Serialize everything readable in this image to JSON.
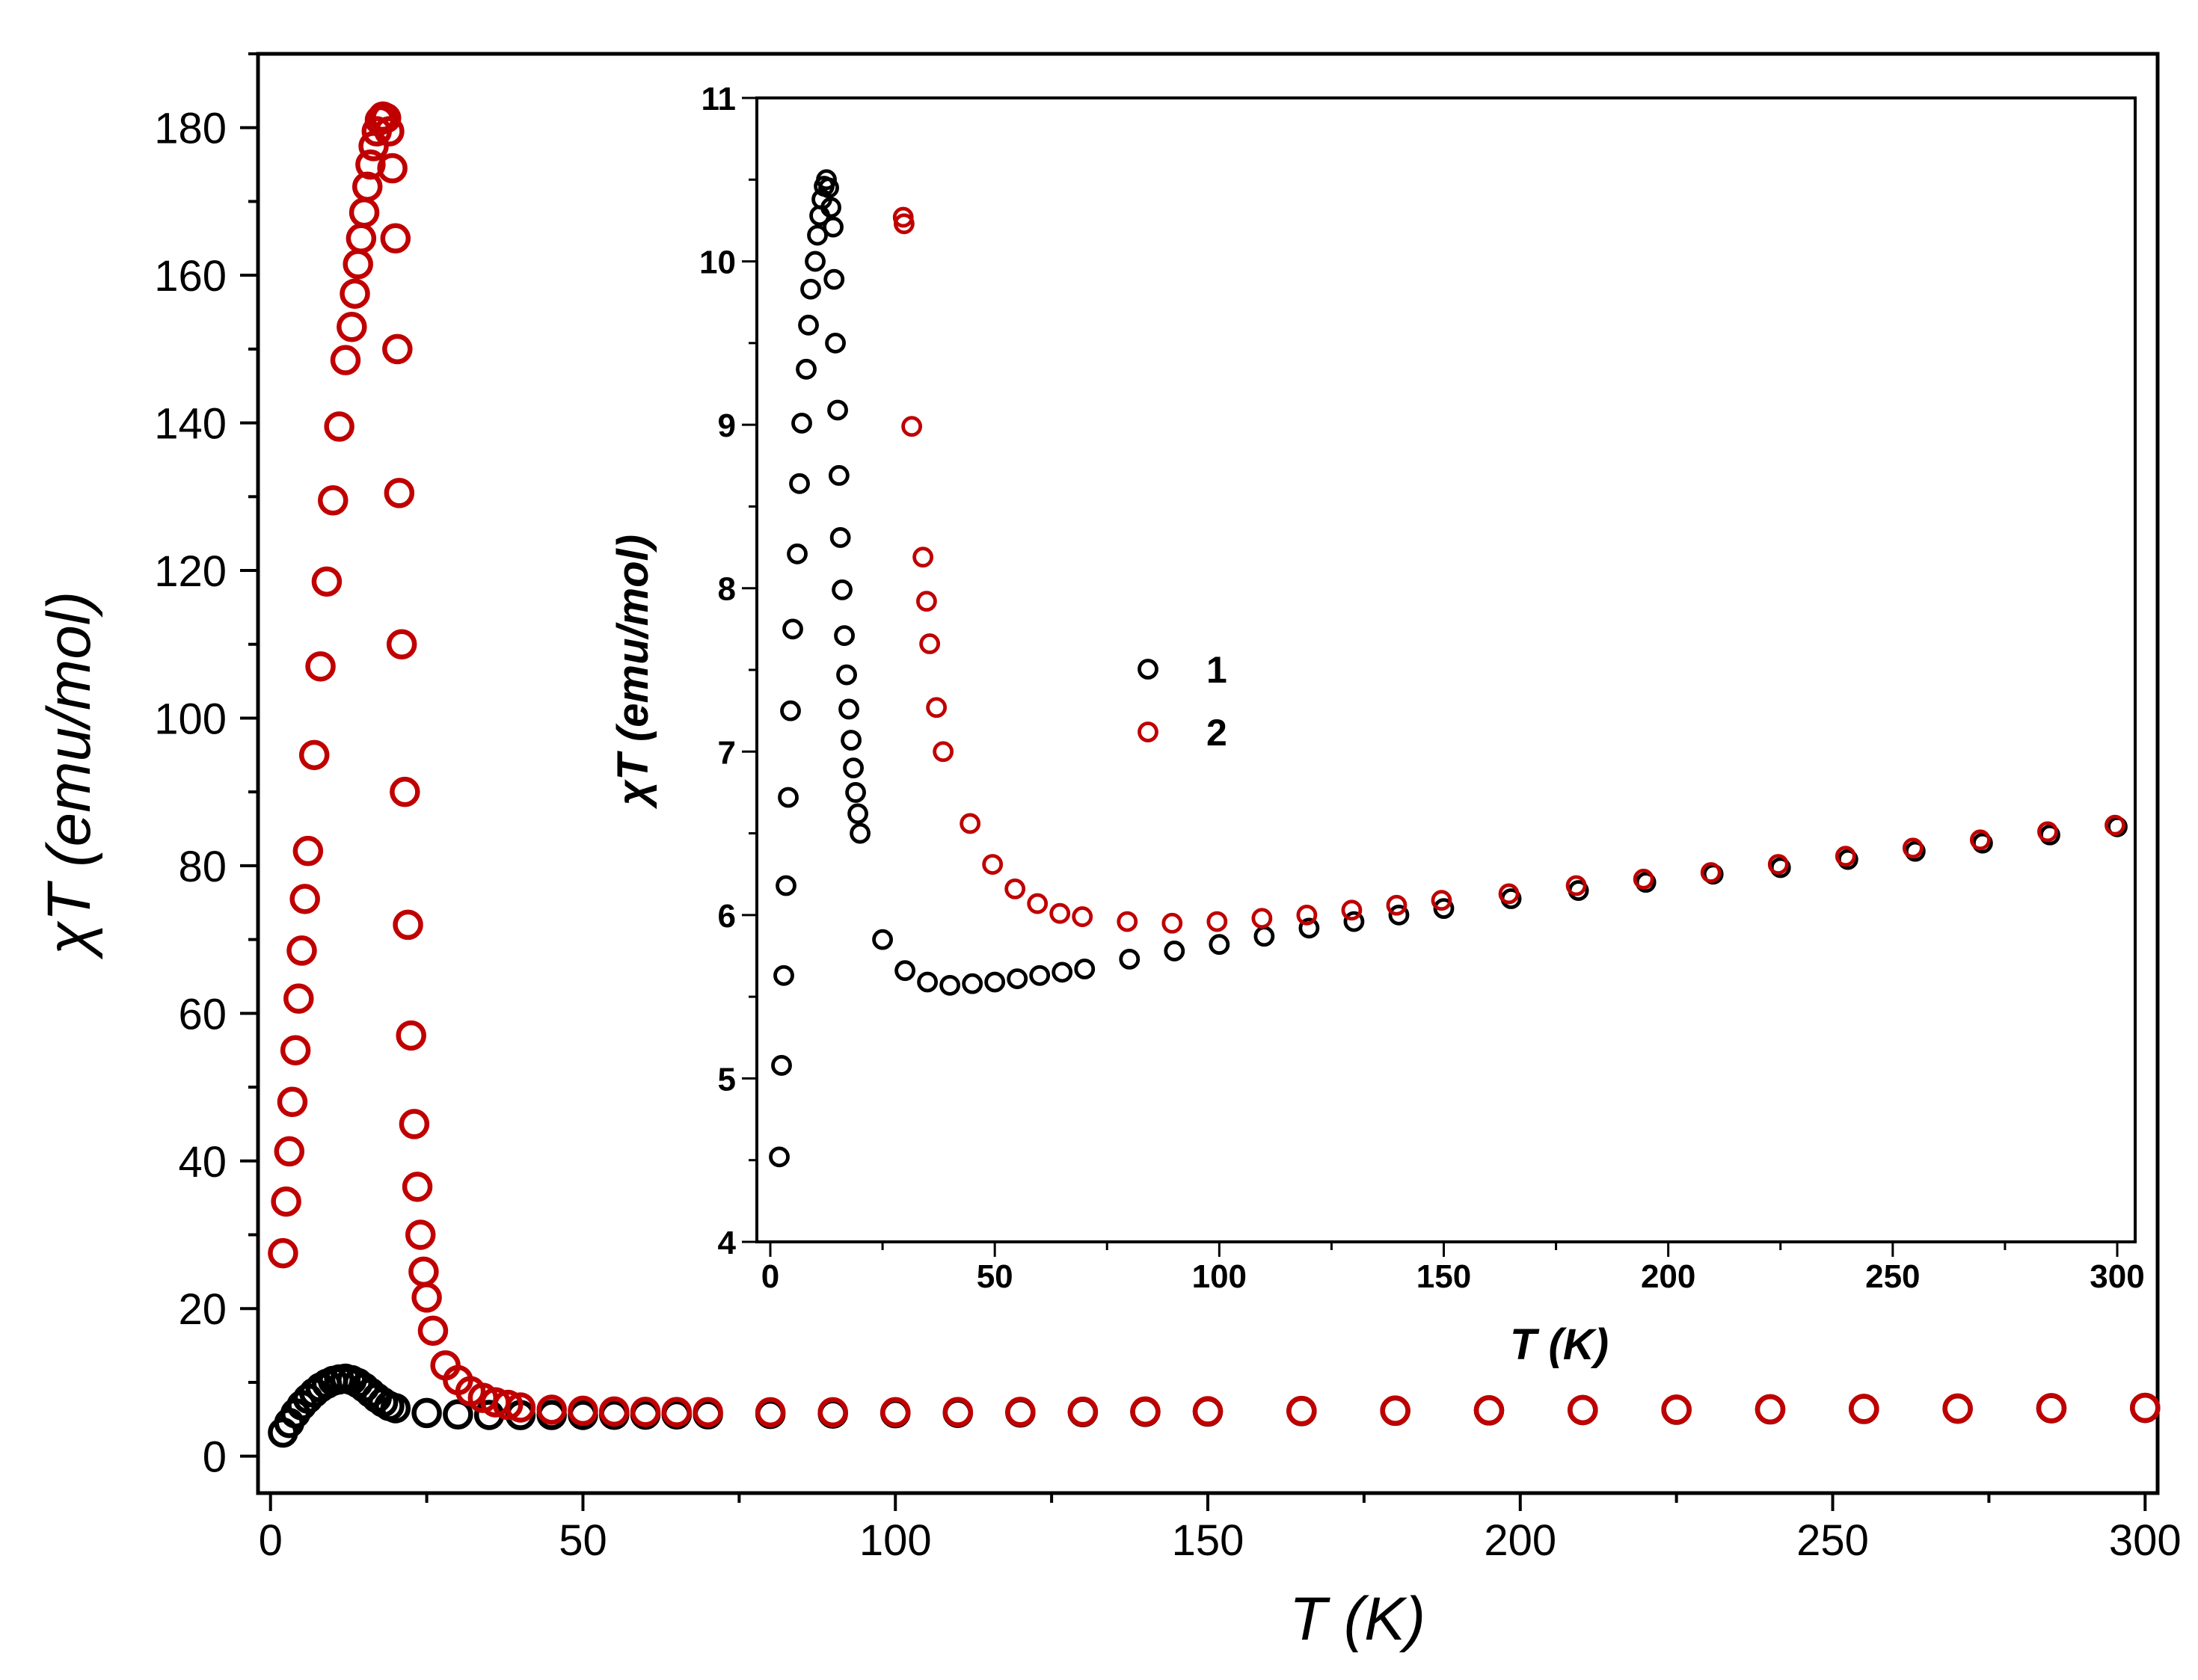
{
  "colors": {
    "series_1": "#000000",
    "series_2": "#c00000",
    "axes": "#000000"
  },
  "chart_data": [
    {
      "type": "scatter",
      "panel": "main",
      "xlabel": "T (K)",
      "ylabel": "χT (emu/mol)",
      "xlim": [
        -2,
        302
      ],
      "ylim": [
        -5,
        190
      ],
      "x_ticks": [
        0,
        50,
        100,
        150,
        200,
        250,
        300
      ],
      "y_ticks": [
        0,
        20,
        40,
        60,
        80,
        100,
        120,
        140,
        160,
        180
      ],
      "series": [
        {
          "color": "#000000",
          "points": [
            [
              2,
              3.2
            ],
            [
              3,
              4.5
            ],
            [
              4,
              5.8
            ],
            [
              5,
              6.9
            ],
            [
              6,
              7.8
            ],
            [
              7,
              8.6
            ],
            [
              8,
              9.3
            ],
            [
              9,
              9.8
            ],
            [
              10,
              10.2
            ],
            [
              11,
              10.4
            ],
            [
              12,
              10.5
            ],
            [
              13,
              10.3
            ],
            [
              14,
              9.9
            ],
            [
              15,
              9.3
            ],
            [
              16,
              8.6
            ],
            [
              17,
              7.9
            ],
            [
              18,
              7.3
            ],
            [
              19,
              6.8
            ],
            [
              20,
              6.5
            ],
            [
              25,
              5.85
            ],
            [
              30,
              5.66
            ],
            [
              35,
              5.59
            ],
            [
              40,
              5.57
            ],
            [
              45,
              5.58
            ],
            [
              50,
              5.59
            ],
            [
              55,
              5.61
            ],
            [
              60,
              5.63
            ],
            [
              65,
              5.65
            ],
            [
              70,
              5.67
            ],
            [
              80,
              5.73
            ],
            [
              90,
              5.78
            ],
            [
              100,
              5.82
            ],
            [
              110,
              5.87
            ],
            [
              120,
              5.92
            ],
            [
              130,
              5.96
            ],
            [
              140,
              6.0
            ],
            [
              150,
              6.04
            ],
            [
              165,
              6.1
            ],
            [
              180,
              6.15
            ],
            [
              195,
              6.2
            ],
            [
              210,
              6.25
            ],
            [
              225,
              6.29
            ],
            [
              240,
              6.34
            ],
            [
              255,
              6.39
            ],
            [
              270,
              6.44
            ],
            [
              285,
              6.49
            ],
            [
              300,
              6.54
            ]
          ]
        },
        {
          "color": "#c00000",
          "points": [
            [
              2,
              27.5
            ],
            [
              2.5,
              34.5
            ],
            [
              3,
              41.3
            ],
            [
              3.5,
              48
            ],
            [
              4,
              55
            ],
            [
              4.5,
              62
            ],
            [
              5,
              68.5
            ],
            [
              5.5,
              75.5
            ],
            [
              6,
              82
            ],
            [
              7,
              95
            ],
            [
              8,
              107
            ],
            [
              9,
              118.5
            ],
            [
              10,
              129.5
            ],
            [
              11,
              139.5
            ],
            [
              12,
              148.5
            ],
            [
              13,
              153
            ],
            [
              13.5,
              157.5
            ],
            [
              14,
              161.5
            ],
            [
              14.5,
              165
            ],
            [
              15,
              168.5
            ],
            [
              15.5,
              172
            ],
            [
              16,
              175
            ],
            [
              16.5,
              177.5
            ],
            [
              17,
              179.5
            ],
            [
              17.5,
              181
            ],
            [
              18,
              181.5
            ],
            [
              18.5,
              181.3
            ],
            [
              19,
              179.5
            ],
            [
              19.5,
              174.5
            ],
            [
              20,
              165
            ],
            [
              20.3,
              150
            ],
            [
              20.6,
              130.5
            ],
            [
              21,
              110
            ],
            [
              21.5,
              90
            ],
            [
              22,
              72
            ],
            [
              22.5,
              57
            ],
            [
              23,
              45
            ],
            [
              23.5,
              36.5
            ],
            [
              24,
              30
            ],
            [
              24.5,
              25
            ],
            [
              25,
              21.5
            ],
            [
              26,
              17
            ],
            [
              28,
              12.3
            ],
            [
              30,
              10.3
            ],
            [
              32,
              8.8
            ],
            [
              34,
              7.9
            ],
            [
              36,
              7.3
            ],
            [
              38,
              6.95
            ],
            [
              40,
              6.6
            ],
            [
              45,
              6.3
            ],
            [
              50,
              6.15
            ],
            [
              55,
              6.05
            ],
            [
              60,
              6.0
            ],
            [
              65,
              5.98
            ],
            [
              70,
              5.97
            ],
            [
              80,
              5.95
            ],
            [
              90,
              5.95
            ],
            [
              100,
              5.96
            ],
            [
              110,
              5.98
            ],
            [
              120,
              6.0
            ],
            [
              130,
              6.03
            ],
            [
              140,
              6.06
            ],
            [
              150,
              6.09
            ],
            [
              165,
              6.13
            ],
            [
              180,
              6.18
            ],
            [
              195,
              6.22
            ],
            [
              210,
              6.26
            ],
            [
              225,
              6.31
            ],
            [
              240,
              6.36
            ],
            [
              255,
              6.41
            ],
            [
              270,
              6.46
            ],
            [
              285,
              6.51
            ],
            [
              300,
              6.55
            ]
          ]
        }
      ]
    },
    {
      "type": "scatter",
      "panel": "inset",
      "xlabel": "T (K)",
      "ylabel": "χT (emu/mol)",
      "xlim": [
        -3,
        304
      ],
      "ylim": [
        4,
        11
      ],
      "x_ticks": [
        0,
        50,
        100,
        150,
        200,
        250,
        300
      ],
      "y_ticks": [
        4,
        5,
        6,
        7,
        8,
        9,
        10,
        11
      ],
      "legend": {
        "position": "center-left",
        "entries": [
          "1",
          "2"
        ]
      },
      "series": [
        {
          "name": "1",
          "color": "#000000",
          "points": [
            [
              2,
              4.52
            ],
            [
              2.5,
              5.08
            ],
            [
              3,
              5.63
            ],
            [
              3.5,
              6.18
            ],
            [
              4,
              6.72
            ],
            [
              4.5,
              7.25
            ],
            [
              5,
              7.75
            ],
            [
              6,
              8.21
            ],
            [
              6.5,
              8.64
            ],
            [
              7,
              9.01
            ],
            [
              8,
              9.34
            ],
            [
              8.5,
              9.61
            ],
            [
              9,
              9.83
            ],
            [
              10,
              10.0
            ],
            [
              10.5,
              10.16
            ],
            [
              11,
              10.28
            ],
            [
              11.5,
              10.38
            ],
            [
              12,
              10.46
            ],
            [
              12.5,
              10.5
            ],
            [
              13,
              10.45
            ],
            [
              13.5,
              10.33
            ],
            [
              14,
              10.21
            ],
            [
              14.2,
              9.89
            ],
            [
              14.5,
              9.5
            ],
            [
              15,
              9.09
            ],
            [
              15.3,
              8.69
            ],
            [
              15.6,
              8.31
            ],
            [
              16,
              7.99
            ],
            [
              16.5,
              7.71
            ],
            [
              17,
              7.47
            ],
            [
              17.5,
              7.26
            ],
            [
              18,
              7.07
            ],
            [
              18.5,
              6.9
            ],
            [
              19,
              6.75
            ],
            [
              19.5,
              6.62
            ],
            [
              20,
              6.5
            ],
            [
              25,
              5.85
            ],
            [
              30,
              5.66
            ],
            [
              35,
              5.59
            ],
            [
              40,
              5.57
            ],
            [
              45,
              5.58
            ],
            [
              50,
              5.59
            ],
            [
              55,
              5.61
            ],
            [
              60,
              5.63
            ],
            [
              65,
              5.65
            ],
            [
              70,
              5.67
            ],
            [
              80,
              5.73
            ],
            [
              90,
              5.78
            ],
            [
              100,
              5.82
            ],
            [
              110,
              5.87
            ],
            [
              120,
              5.92
            ],
            [
              130,
              5.96
            ],
            [
              140,
              6.0
            ],
            [
              150,
              6.04
            ],
            [
              165,
              6.1
            ],
            [
              180,
              6.15
            ],
            [
              195,
              6.2
            ],
            [
              210,
              6.25
            ],
            [
              225,
              6.29
            ],
            [
              240,
              6.34
            ],
            [
              255,
              6.39
            ],
            [
              270,
              6.44
            ],
            [
              285,
              6.49
            ],
            [
              300,
              6.54
            ]
          ]
        },
        {
          "name": "2",
          "color": "#c00000",
          "points": [
            [
              29.6,
              10.27
            ],
            [
              29.8,
              10.23
            ],
            [
              31.5,
              8.99
            ],
            [
              34,
              8.19
            ],
            [
              34.8,
              7.92
            ],
            [
              35.5,
              7.66
            ],
            [
              37,
              7.27
            ],
            [
              38.5,
              7.0
            ],
            [
              44.5,
              6.56
            ],
            [
              49.5,
              6.31
            ],
            [
              54.5,
              6.16
            ],
            [
              59.5,
              6.07
            ],
            [
              64.5,
              6.01
            ],
            [
              69.5,
              5.99
            ],
            [
              79.5,
              5.96
            ],
            [
              89.5,
              5.95
            ],
            [
              99.5,
              5.96
            ],
            [
              109.5,
              5.98
            ],
            [
              119.5,
              6.0
            ],
            [
              129.5,
              6.03
            ],
            [
              139.5,
              6.06
            ],
            [
              149.5,
              6.09
            ],
            [
              164.5,
              6.13
            ],
            [
              179.5,
              6.18
            ],
            [
              194.5,
              6.22
            ],
            [
              209.5,
              6.26
            ],
            [
              224.5,
              6.31
            ],
            [
              239.5,
              6.36
            ],
            [
              254.5,
              6.41
            ],
            [
              269.5,
              6.46
            ],
            [
              284.5,
              6.51
            ],
            [
              299.5,
              6.55
            ]
          ]
        }
      ]
    }
  ]
}
